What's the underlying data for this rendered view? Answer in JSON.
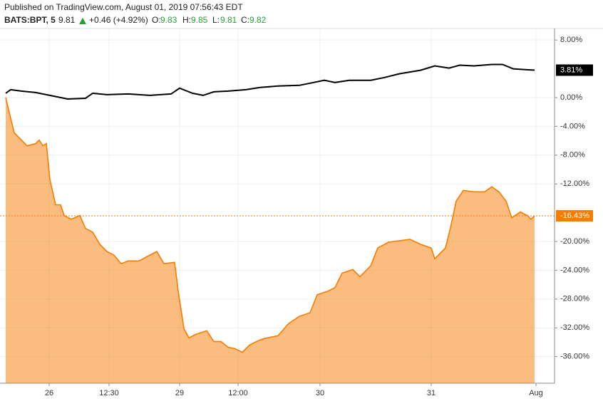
{
  "header": {
    "published": "Published on TradingView.com, August 01, 2019 07:56:43 EDT",
    "symbol": "BATS:BPT, 5",
    "price": "9.81",
    "change": "+0.46 (+4.92%)",
    "ohlc": [
      {
        "label": "O:",
        "value": "9.83"
      },
      {
        "label": "H:",
        "value": "9.85"
      },
      {
        "label": "L:",
        "value": "9.81"
      },
      {
        "label": "C:",
        "value": "9.82"
      }
    ]
  },
  "chart_data": {
    "type": "line",
    "xlim": [
      8,
      778
    ],
    "xticks": [
      {
        "value": 69,
        "label": "26"
      },
      {
        "value": 153,
        "label": "12:30"
      },
      {
        "value": 252,
        "label": "29"
      },
      {
        "value": 334,
        "label": "12:00"
      },
      {
        "value": 449,
        "label": "30"
      },
      {
        "value": 605,
        "label": "31"
      },
      {
        "value": 752,
        "label": "Aug"
      }
    ],
    "ylim": [
      -39.7,
      9.6
    ],
    "yticks": [
      {
        "value": 8,
        "label": "8.00%"
      },
      {
        "value": 0,
        "label": "0.00%"
      },
      {
        "value": -4,
        "label": "-4.00%"
      },
      {
        "value": -8,
        "label": "-8.00%"
      },
      {
        "value": -12,
        "label": "-12.00%"
      },
      {
        "value": -20,
        "label": "-20.00%"
      },
      {
        "value": -24,
        "label": "-24.00%"
      },
      {
        "value": -28,
        "label": "-28.00%"
      },
      {
        "value": -32,
        "label": "-32.00%"
      },
      {
        "value": -36,
        "label": "-36.00%"
      }
    ],
    "grid": true,
    "series": [
      {
        "color": "#000000",
        "area": false,
        "x": [
          8,
          15,
          30,
          50,
          70,
          95,
          120,
          130,
          150,
          180,
          210,
          240,
          252,
          270,
          285,
          300,
          320,
          345,
          365,
          390,
          420,
          440,
          455,
          470,
          490,
          520,
          540,
          560,
          590,
          610,
          630,
          645,
          665,
          690,
          705,
          720,
          735,
          750
        ],
        "values": [
          0.6,
          1.1,
          0.9,
          0.7,
          0.3,
          -0.2,
          -0.1,
          0.6,
          0.4,
          0.5,
          0.3,
          0.5,
          1.3,
          0.6,
          0.3,
          0.8,
          0.9,
          1.1,
          1.4,
          1.6,
          1.7,
          2.1,
          2.4,
          2.1,
          2.4,
          2.4,
          2.8,
          3.3,
          3.8,
          4.4,
          4.1,
          4.5,
          4.4,
          4.6,
          4.6,
          4.0,
          3.9,
          3.81
        ],
        "last": {
          "value": 3.81,
          "label": "3.81%"
        }
      },
      {
        "color": "#f57c00",
        "area": true,
        "x": [
          8,
          15,
          20,
          30,
          38,
          50,
          55,
          60,
          65,
          70,
          78,
          85,
          90,
          100,
          112,
          120,
          130,
          140,
          150,
          160,
          170,
          180,
          195,
          210,
          220,
          230,
          245,
          250,
          258,
          265,
          275,
          290,
          300,
          310,
          320,
          330,
          340,
          350,
          360,
          370,
          390,
          405,
          420,
          435,
          445,
          460,
          470,
          480,
          495,
          505,
          520,
          530,
          545,
          560,
          575,
          590,
          605,
          610,
          625,
          632,
          640,
          650,
          665,
          680,
          690,
          700,
          710,
          718,
          730,
          740,
          745,
          750
        ],
        "values": [
          0,
          -2.9,
          -4.9,
          -5.9,
          -6.7,
          -6.4,
          -5.9,
          -6.7,
          -6.4,
          -11.4,
          -14.9,
          -14.9,
          -16.4,
          -16.9,
          -16.4,
          -18.2,
          -18.7,
          -20.4,
          -21.4,
          -21.9,
          -23.1,
          -22.7,
          -22.7,
          -21.9,
          -21.4,
          -23.1,
          -22.9,
          -26.9,
          -32.1,
          -33.4,
          -32.9,
          -32.4,
          -33.9,
          -33.9,
          -34.7,
          -34.9,
          -35.4,
          -34.4,
          -33.9,
          -33.5,
          -33.1,
          -31.4,
          -30.4,
          -29.9,
          -27.4,
          -26.9,
          -26.4,
          -24.4,
          -23.9,
          -24.9,
          -23.4,
          -20.9,
          -20.1,
          -19.9,
          -19.7,
          -20.4,
          -20.9,
          -22.4,
          -20.9,
          -18.1,
          -14.4,
          -12.9,
          -13.1,
          -13.1,
          -12.4,
          -13.1,
          -14.4,
          -16.7,
          -15.9,
          -16.4,
          -16.9,
          -16.43
        ],
        "last": {
          "value": -16.43,
          "label": "-16.43%"
        }
      }
    ]
  }
}
